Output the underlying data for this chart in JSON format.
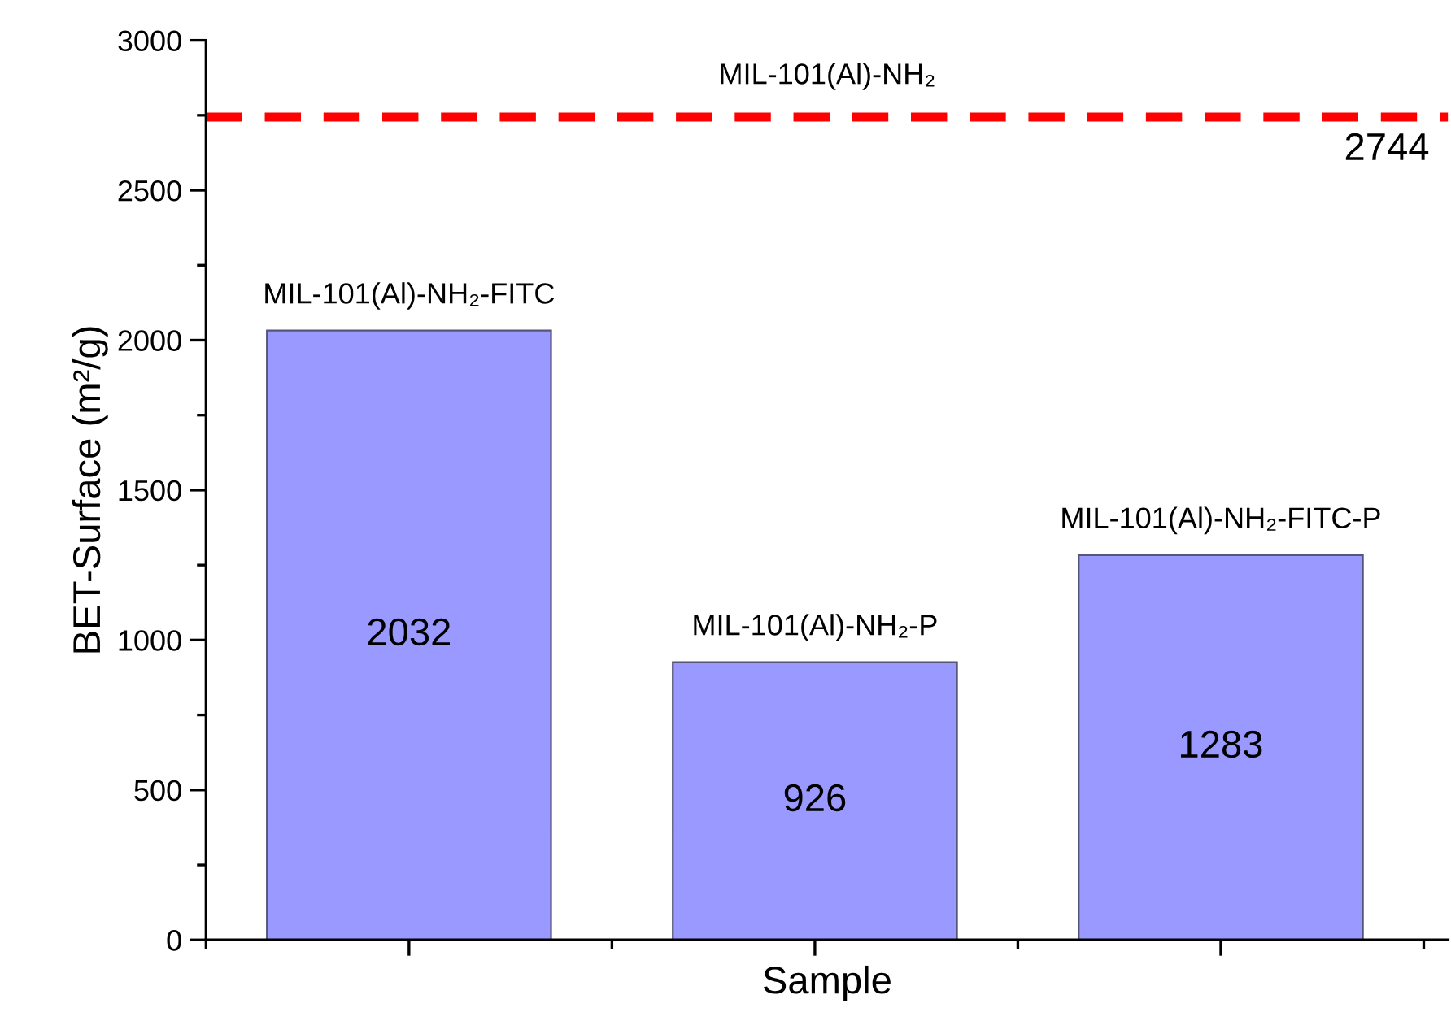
{
  "chart_data": {
    "type": "bar",
    "ylabel": "BET-Surface (m²/g)",
    "xlabel": "Sample",
    "categories": [
      "MIL-101(Al)-NH₂-FITC",
      "MIL-101(Al)-NH₂-P",
      "MIL-101(Al)-NH₂-FITC-P"
    ],
    "values": [
      2032,
      926,
      1283
    ],
    "color": "#9999ff",
    "data_labels": true,
    "ylim": [
      0,
      3000
    ],
    "yticks": [
      0,
      500,
      1000,
      1500,
      2000,
      2500,
      3000
    ],
    "tick_labels": "y",
    "grid": false,
    "legend": false,
    "ref_lines": [
      {
        "axis": "y",
        "value": 2744,
        "label": "2744",
        "color": "#ff0000",
        "line_style": "dashed"
      }
    ],
    "annotations": [
      {
        "text": "MIL-101(Al)-NH₂",
        "y": 2744
      }
    ]
  }
}
